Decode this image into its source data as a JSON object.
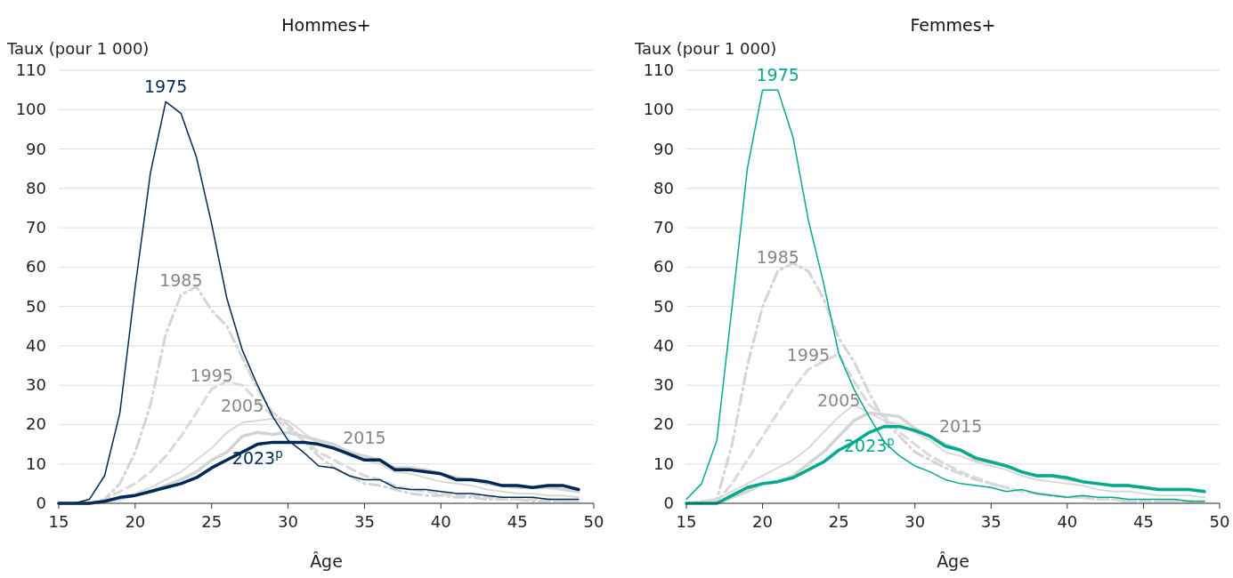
{
  "chart_data": [
    {
      "type": "line",
      "title": "Hommes+",
      "xlabel": "Âge",
      "ylabel": "Taux (pour 1 000)",
      "x": [
        15,
        16,
        17,
        18,
        19,
        20,
        21,
        22,
        23,
        24,
        25,
        26,
        27,
        28,
        29,
        30,
        31,
        32,
        33,
        34,
        35,
        36,
        37,
        38,
        39,
        40,
        41,
        42,
        43,
        44,
        45,
        46,
        47,
        48,
        49
      ],
      "xlim": [
        15,
        50
      ],
      "xticks": [
        15,
        20,
        25,
        30,
        35,
        40,
        45,
        50
      ],
      "ylim": [
        0,
        110
      ],
      "yticks": [
        0,
        10,
        20,
        30,
        40,
        50,
        60,
        70,
        80,
        90,
        100,
        110
      ],
      "grid": "y",
      "series": [
        {
          "name": "1975",
          "color": "#002855",
          "line_style": "solid",
          "values": [
            0,
            0,
            1,
            7,
            23,
            55,
            84,
            102,
            99,
            88,
            71,
            52,
            39,
            30,
            22,
            16,
            13,
            9.5,
            9,
            7,
            6,
            6,
            4,
            3.5,
            3.5,
            3,
            2.5,
            2.5,
            2,
            1.5,
            1.5,
            1.5,
            1,
            1,
            1
          ]
        },
        {
          "name": "1985",
          "color": "#d4d4d4",
          "line_style": "dashdot",
          "values": [
            0,
            0,
            0,
            1,
            5,
            13,
            25,
            43,
            53,
            55,
            49,
            45,
            37,
            29,
            23,
            20,
            16,
            12,
            9,
            7,
            5,
            4.5,
            3.5,
            2.5,
            2,
            2,
            1.5,
            1.5,
            1,
            1,
            1,
            0.5,
            0.5,
            0.5,
            0.5
          ]
        },
        {
          "name": "1995",
          "color": "#d9d9d9",
          "line_style": "dashed",
          "values": [
            0,
            0,
            0,
            1,
            3,
            5,
            8,
            12,
            17,
            23,
            29,
            31,
            30,
            26,
            22,
            19,
            16,
            13,
            11,
            9,
            7,
            6,
            4.5,
            3.5,
            3,
            2.5,
            2,
            2,
            1.5,
            1.5,
            1,
            1,
            1,
            0.5,
            0.5
          ]
        },
        {
          "name": "2005",
          "color": "#d9d9d9",
          "line_style": "solid",
          "values": [
            0,
            0,
            0,
            0.5,
            1.5,
            2.5,
            4,
            6,
            8,
            11,
            14,
            18,
            20.5,
            21,
            21.5,
            21,
            18,
            15,
            14,
            12,
            11,
            10,
            8,
            7.5,
            6.5,
            5.5,
            5,
            4.5,
            3.5,
            3,
            2.5,
            2.5,
            2,
            2,
            1.5
          ]
        },
        {
          "name": "2015",
          "color": "#d4d4d4",
          "line_style": "solid",
          "values": [
            0,
            0,
            0,
            0.5,
            1,
            2,
            3,
            4.5,
            6,
            8,
            11,
            13,
            17,
            18,
            17.5,
            18,
            17,
            16,
            15,
            13,
            12,
            11,
            9,
            9,
            8.5,
            7.5,
            6.5,
            6,
            5,
            4.5,
            4,
            4,
            4,
            3.5,
            3
          ]
        },
        {
          "name": "2023$^{p}$",
          "color": "#002855",
          "line_style": "solid",
          "values": [
            0,
            0,
            0,
            0.5,
            1.5,
            2,
            3,
            4,
            5,
            6.5,
            9,
            11,
            13,
            15,
            15.5,
            15.5,
            15.5,
            15,
            14,
            12.5,
            11,
            11,
            8.5,
            8.5,
            8,
            7.5,
            6,
            6,
            5.5,
            4.5,
            4.5,
            4,
            4.5,
            4.5,
            3.5
          ]
        }
      ]
    },
    {
      "type": "line",
      "title": "Femmes+",
      "xlabel": "Âge",
      "ylabel": "Taux (pour 1 000)",
      "x": [
        15,
        16,
        17,
        18,
        19,
        20,
        21,
        22,
        23,
        24,
        25,
        26,
        27,
        28,
        29,
        30,
        31,
        32,
        33,
        34,
        35,
        36,
        37,
        38,
        39,
        40,
        41,
        42,
        43,
        44,
        45,
        46,
        47,
        48,
        49
      ],
      "xlim": [
        15,
        50
      ],
      "xticks": [
        15,
        20,
        25,
        30,
        35,
        40,
        45,
        50
      ],
      "ylim": [
        0,
        110
      ],
      "yticks": [
        0,
        10,
        20,
        30,
        40,
        50,
        60,
        70,
        80,
        90,
        100,
        110
      ],
      "grid": "y",
      "series": [
        {
          "name": "1975",
          "color": "#00a98f",
          "line_style": "solid",
          "values": [
            1,
            5,
            16,
            50,
            85,
            105,
            105,
            93,
            72,
            56,
            38,
            29,
            22,
            15.5,
            12,
            9.5,
            8,
            6,
            5,
            4.5,
            4,
            3,
            3.5,
            2.5,
            2,
            1.5,
            2,
            1.5,
            1.5,
            1,
            1,
            1,
            1,
            0.5,
            0.5
          ]
        },
        {
          "name": "1985",
          "color": "#d4d4d4",
          "line_style": "dashdot",
          "values": [
            0,
            0.5,
            1,
            15,
            35,
            50,
            59,
            61,
            59,
            52,
            42,
            36,
            28,
            21,
            17,
            13,
            11,
            9,
            7.5,
            6,
            5,
            4,
            3,
            2.5,
            2,
            1.5,
            1.5,
            1,
            1,
            0.5,
            0.5,
            0.5,
            0.5,
            0.5,
            0.5
          ]
        },
        {
          "name": "1995",
          "color": "#d9d9d9",
          "line_style": "dashed",
          "values": [
            0,
            0,
            0.5,
            5,
            11,
            17,
            23,
            29,
            34,
            36,
            38,
            31,
            25,
            22,
            18,
            15,
            12,
            10,
            8,
            6.5,
            5,
            4,
            3,
            2.5,
            2,
            1.5,
            1.5,
            1,
            1,
            0.5,
            0.5,
            0.5,
            0.5,
            0.5,
            0.5
          ]
        },
        {
          "name": "2005",
          "color": "#d9d9d9",
          "line_style": "solid",
          "values": [
            0,
            0.5,
            1,
            3,
            5,
            7,
            9,
            11,
            14,
            18,
            22,
            25,
            23,
            21,
            20,
            18,
            16,
            13,
            12,
            10.5,
            9.5,
            8.5,
            7,
            6,
            5.5,
            5,
            4.5,
            3.5,
            3,
            3,
            2.5,
            2,
            2,
            2,
            1.5
          ]
        },
        {
          "name": "2015",
          "color": "#d4d4d4",
          "line_style": "solid",
          "values": [
            0,
            0,
            0,
            1.5,
            3,
            5,
            5.5,
            7,
            10,
            13,
            17,
            21,
            23,
            22.5,
            22,
            19,
            17,
            15,
            13.5,
            11,
            10.5,
            9.5,
            8,
            7,
            7,
            6,
            5.5,
            5,
            4.5,
            4.5,
            4,
            3.5,
            3.5,
            3.5,
            3
          ]
        },
        {
          "name": "2023$^{p}$",
          "color": "#00a98f",
          "line_style": "solid",
          "values": [
            0,
            0,
            0,
            2,
            4,
            5,
            5.5,
            6.5,
            8.5,
            10.5,
            13.5,
            15.5,
            18,
            19.5,
            19.5,
            18.5,
            17,
            14.5,
            13.5,
            11.5,
            10.5,
            9.5,
            8,
            7,
            7,
            6.5,
            5.5,
            5,
            4.5,
            4.5,
            4,
            3.5,
            3.5,
            3.5,
            3
          ]
        }
      ]
    }
  ]
}
